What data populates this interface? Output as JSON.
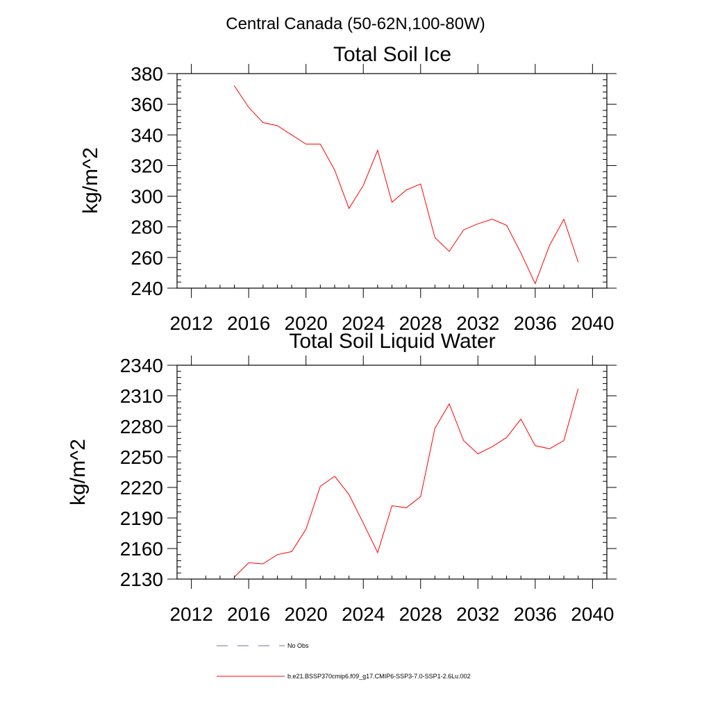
{
  "figure": {
    "title": "Central Canada (50-62N,100-80W)"
  },
  "chart_data": [
    {
      "type": "line",
      "title": "Total Soil Ice",
      "xlabel": "",
      "ylabel": "kg/m^2",
      "xlim": [
        2011,
        2041
      ],
      "ylim": [
        240,
        380
      ],
      "xticks": [
        2012,
        2016,
        2020,
        2024,
        2028,
        2032,
        2036,
        2040
      ],
      "yticks": [
        240,
        260,
        280,
        300,
        320,
        340,
        360,
        380
      ],
      "grid": false,
      "series": [
        {
          "color": "#ff0000",
          "x": [
            2015,
            2016,
            2017,
            2018,
            2019,
            2020,
            2021,
            2022,
            2023,
            2024,
            2025,
            2026,
            2027,
            2028,
            2029,
            2030,
            2031,
            2032,
            2033,
            2034,
            2035,
            2036,
            2037,
            2038,
            2039
          ],
          "y": [
            372,
            358,
            348,
            346,
            340,
            334,
            334,
            317,
            292,
            307,
            330,
            296,
            304,
            308,
            273,
            264,
            278,
            282,
            285,
            281,
            263,
            243,
            268,
            285,
            257
          ]
        }
      ]
    },
    {
      "type": "line",
      "title": "Total Soil Liquid Water",
      "xlabel": "",
      "ylabel": "kg/m^2",
      "xlim": [
        2011,
        2041
      ],
      "ylim": [
        2130,
        2340
      ],
      "xticks": [
        2012,
        2016,
        2020,
        2024,
        2028,
        2032,
        2036,
        2040
      ],
      "yticks": [
        2130,
        2160,
        2190,
        2220,
        2250,
        2280,
        2310,
        2340
      ],
      "grid": false,
      "series": [
        {
          "color": "#ff0000",
          "x": [
            2015,
            2016,
            2017,
            2018,
            2019,
            2020,
            2021,
            2022,
            2023,
            2024,
            2025,
            2026,
            2027,
            2028,
            2029,
            2030,
            2031,
            2032,
            2033,
            2034,
            2035,
            2036,
            2037,
            2038,
            2039
          ],
          "y": [
            2132,
            2146,
            2145,
            2154,
            2157,
            2179,
            2221,
            2231,
            2213,
            2185,
            2156,
            2202,
            2200,
            2211,
            2278,
            2302,
            2266,
            2253,
            2260,
            2269,
            2287,
            2261,
            2258,
            2266,
            2317
          ]
        }
      ]
    }
  ],
  "legend": {
    "position": "bottom",
    "items": [
      {
        "label": "No Obs",
        "color": "#6f6fa0",
        "dashed": true
      },
      {
        "label": "b.e21.BSSP370cmip6.f09_g17.CMIP6-SSP3-7.0-SSP1-2.6Lu.002",
        "color": "#ff0000",
        "dashed": false
      }
    ]
  }
}
